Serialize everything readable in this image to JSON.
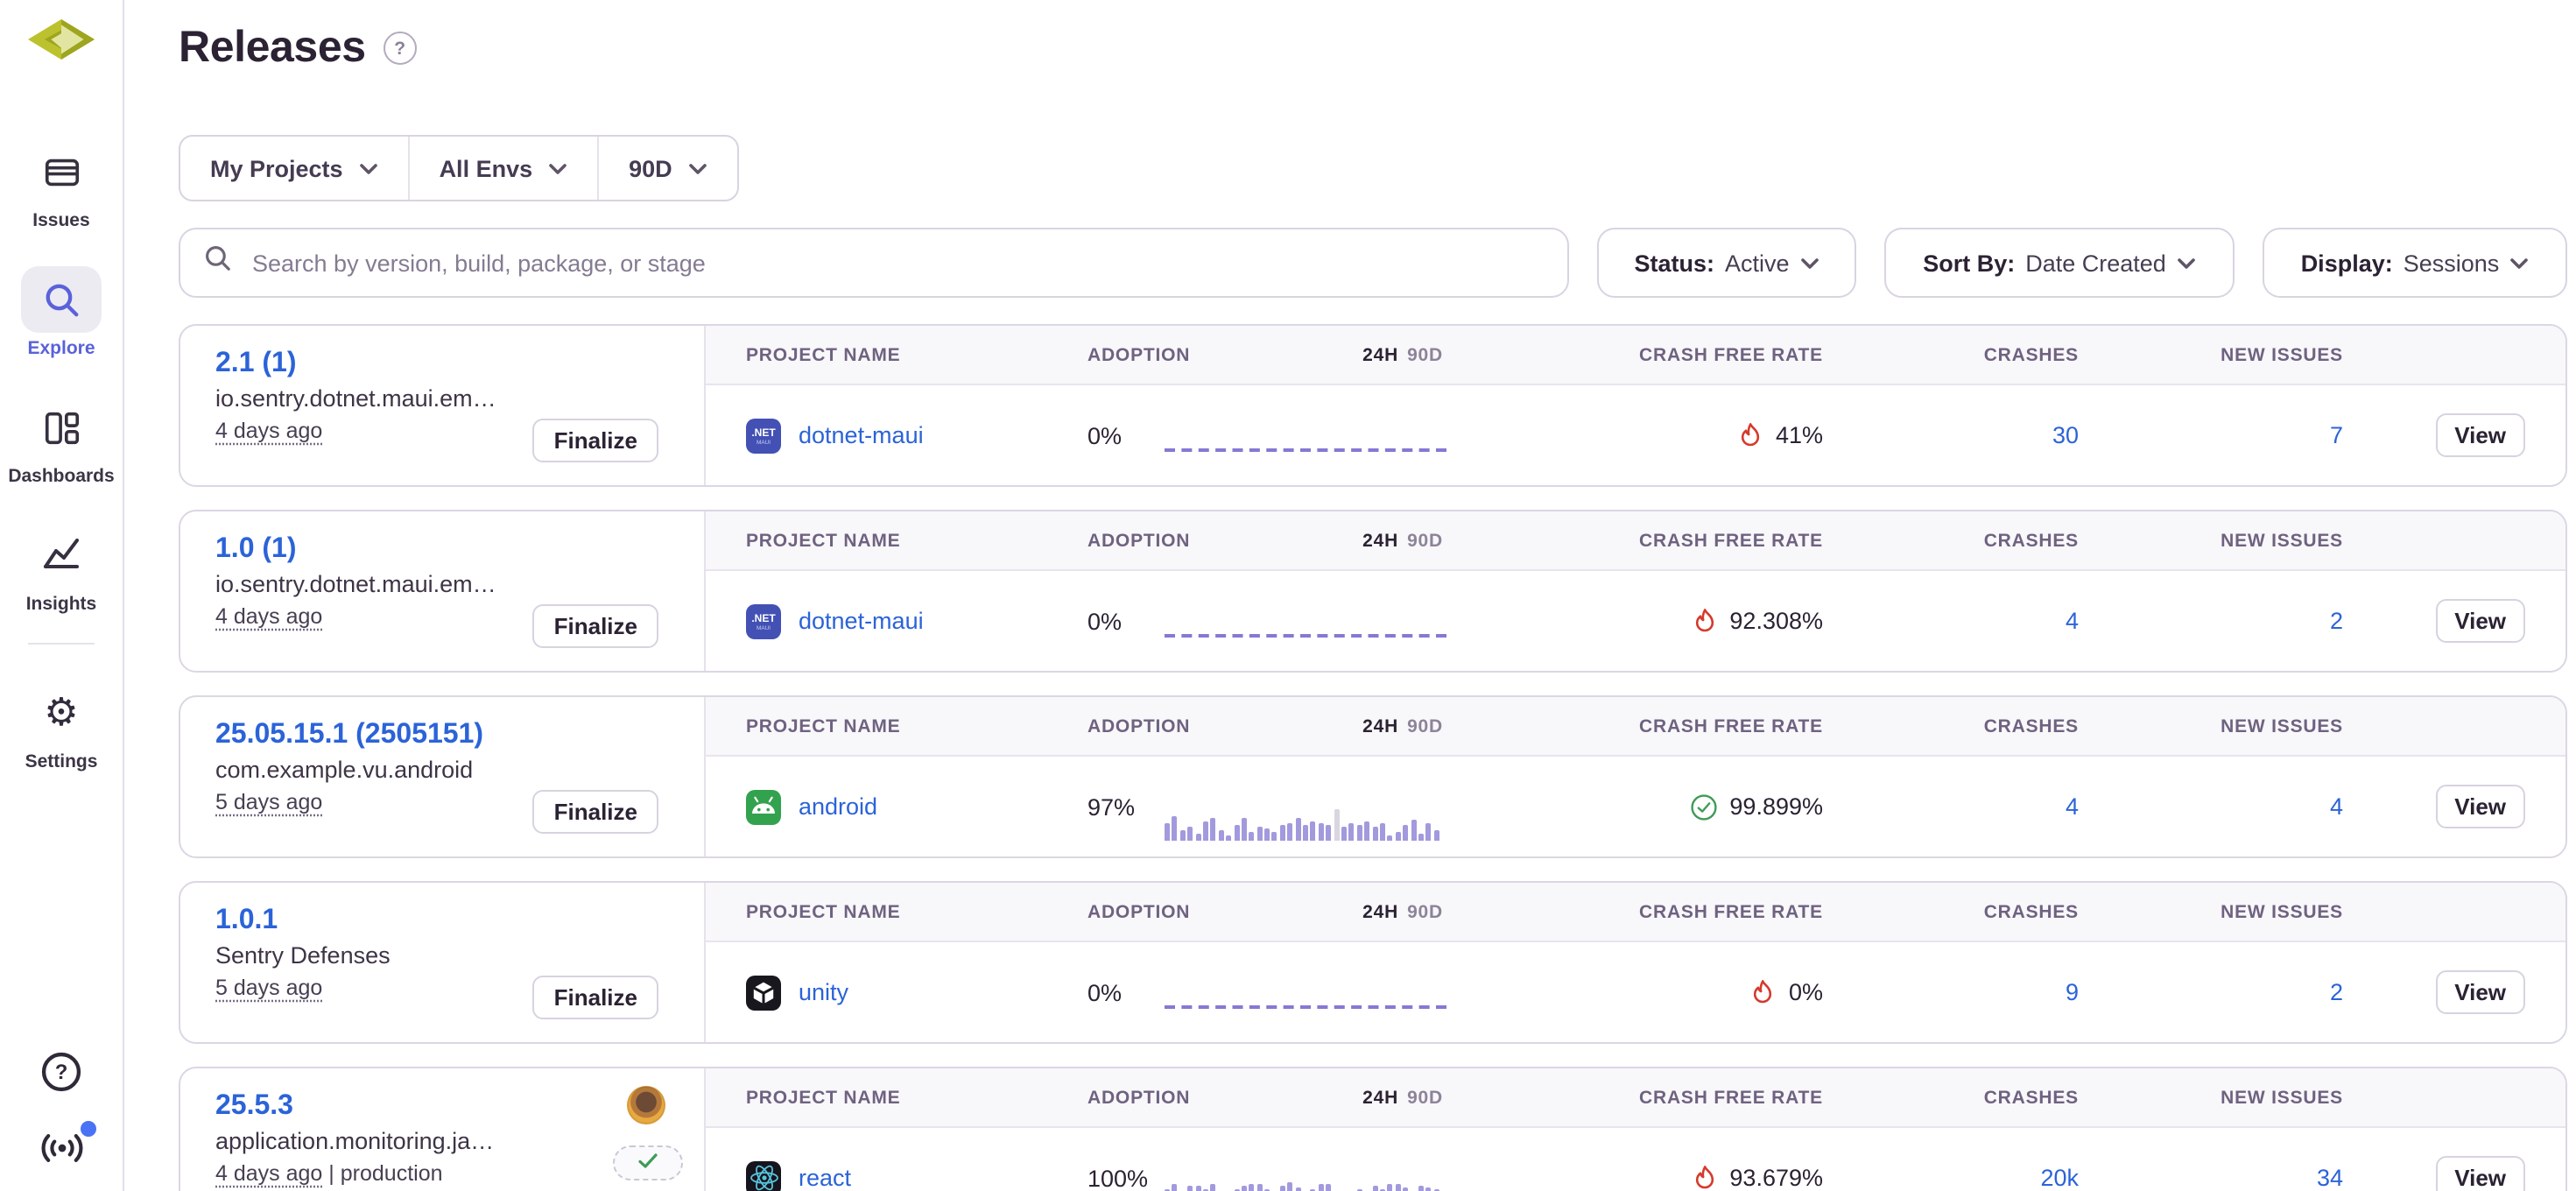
{
  "sidebar": {
    "items": [
      {
        "label": "Issues",
        "icon": "issues-icon",
        "active": false
      },
      {
        "label": "Explore",
        "icon": "search-icon",
        "active": true
      },
      {
        "label": "Dashboards",
        "icon": "dashboards-icon",
        "active": false
      },
      {
        "label": "Insights",
        "icon": "insights-icon",
        "active": false
      },
      {
        "label": "Settings",
        "icon": "gear-icon",
        "active": false
      }
    ],
    "footer_icons": [
      "help-icon",
      "broadcast-icon"
    ],
    "has_notification_dot": true
  },
  "header": {
    "title": "Releases",
    "help_icon": "?"
  },
  "filter_bar": {
    "projects": "My Projects",
    "envs": "All Envs",
    "period": "90D"
  },
  "search": {
    "placeholder": "Search by version, build, package, or stage"
  },
  "controls": {
    "status": {
      "label": "Status:",
      "value": "Active"
    },
    "sort": {
      "label": "Sort By:",
      "value": "Date Created"
    },
    "display": {
      "label": "Display:",
      "value": "Sessions"
    }
  },
  "table_headers": {
    "project": "PROJECT NAME",
    "adoption": "ADOPTION",
    "h24": "24H",
    "d90": "90D",
    "crash_free": "CRASH FREE RATE",
    "crashes": "CRASHES",
    "new_issues": "NEW ISSUES"
  },
  "finalize_label": "Finalize",
  "view_label": "View",
  "colors": {
    "accent_purple": "#5a62da",
    "link_blue": "#2b63d8",
    "flame_red": "#d63a2c",
    "success_green": "#3f9b57",
    "bar_purple": "#a29add",
    "bar_highlight": "#d9d6e0"
  },
  "releases": [
    {
      "version": "2.1 (1)",
      "package": "io.sentry.dotnet.maui.em…",
      "age": "4 days ago",
      "environment": "",
      "finalized": false,
      "project": {
        "name": "dotnet-maui",
        "icon": "dotnet-maui-icon"
      },
      "adoption": "0%",
      "chart": {
        "type": "dashed",
        "values": []
      },
      "crash_free": {
        "value": "41%",
        "status": "bad"
      },
      "crashes": "30",
      "new_issues": "7"
    },
    {
      "version": "1.0 (1)",
      "package": "io.sentry.dotnet.maui.em…",
      "age": "4 days ago",
      "environment": "",
      "finalized": false,
      "project": {
        "name": "dotnet-maui",
        "icon": "dotnet-maui-icon"
      },
      "adoption": "0%",
      "chart": {
        "type": "dashed",
        "values": []
      },
      "crash_free": {
        "value": "92.308%",
        "status": "bad"
      },
      "crashes": "4",
      "new_issues": "2"
    },
    {
      "version": "25.05.15.1 (2505151)",
      "package": "com.example.vu.android",
      "age": "5 days ago",
      "environment": "",
      "finalized": false,
      "project": {
        "name": "android",
        "icon": "android-icon"
      },
      "adoption": "97%",
      "chart": {
        "type": "bars",
        "highlight_index": 22,
        "values": [
          10,
          14,
          6,
          8,
          4,
          11,
          13,
          6,
          3,
          9,
          13,
          5,
          8,
          7,
          5,
          9,
          10,
          13,
          9,
          11,
          10,
          9,
          18,
          8,
          10,
          9,
          11,
          8,
          10,
          3,
          5,
          9,
          12,
          4,
          10,
          6
        ]
      },
      "crash_free": {
        "value": "99.899%",
        "status": "good"
      },
      "crashes": "4",
      "new_issues": "4"
    },
    {
      "version": "1.0.1",
      "package": "Sentry Defenses",
      "age": "5 days ago",
      "environment": "",
      "finalized": false,
      "project": {
        "name": "unity",
        "icon": "unity-icon"
      },
      "adoption": "0%",
      "chart": {
        "type": "dashed",
        "values": []
      },
      "crash_free": {
        "value": "0%",
        "status": "bad"
      },
      "crashes": "9",
      "new_issues": "2"
    },
    {
      "version": "25.5.3",
      "package": "application.monitoring.ja…",
      "age": "4 days ago",
      "environment": "production",
      "finalized": true,
      "project": {
        "name": "react",
        "icon": "react-icon"
      },
      "adoption": "100%",
      "chart": {
        "type": "bars",
        "highlight_index": -1,
        "values": [
          13,
          16,
          12,
          15,
          15,
          13,
          16,
          12,
          9,
          13,
          15,
          16,
          16,
          13,
          11,
          15,
          17,
          14,
          10,
          13,
          16,
          16,
          12,
          9,
          10,
          13,
          12,
          15,
          13,
          16,
          16,
          14,
          12,
          15,
          14,
          13
        ]
      },
      "crash_free": {
        "value": "93.679%",
        "status": "bad"
      },
      "crashes": "20k",
      "new_issues": "34"
    }
  ]
}
